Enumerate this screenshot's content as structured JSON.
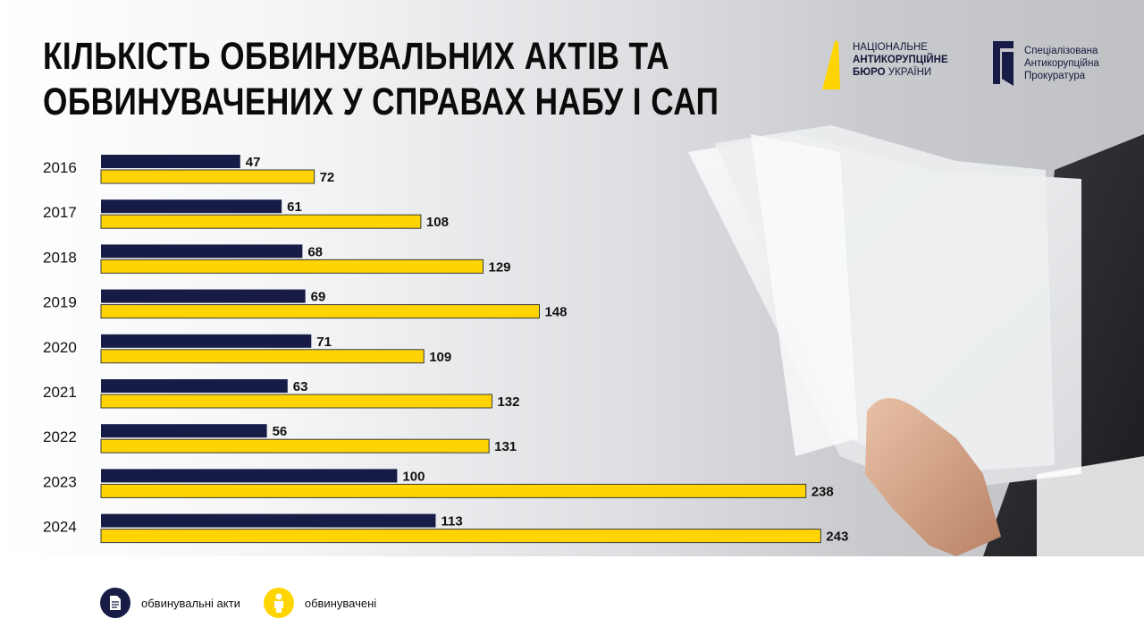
{
  "header": {
    "title_line1": "Кількість обвинувальних актів та",
    "title_line2": "обвинувачених  у справах НАБУ і САП"
  },
  "logos": {
    "nabu": {
      "line1": "НАЦІОНАЛЬНЕ",
      "line2": "АНТИКОРУПЦІЙНЕ",
      "line3_a": "БЮРО",
      "line3_b": "УКРАЇНИ"
    },
    "sap": {
      "line1": "Спеціалізована",
      "line2": "Антикорупційна",
      "line3": "Прокуратура"
    }
  },
  "legend": {
    "acts_label": "обвинувальні акти",
    "accused_label": "обвинувачені"
  },
  "colors": {
    "acts": "#161c45",
    "accused": "#ffd400",
    "accused_border": "#3a3a3a"
  },
  "icons": {
    "acts": "document-icon",
    "accused": "person-icon"
  },
  "chart_data": {
    "type": "bar",
    "orientation": "horizontal",
    "categories": [
      "2016",
      "2017",
      "2018",
      "2019",
      "2020",
      "2021",
      "2022",
      "2023",
      "2024"
    ],
    "series": [
      {
        "name": "обвинувальні акти",
        "values": [
          47,
          61,
          68,
          69,
          71,
          63,
          56,
          100,
          113
        ]
      },
      {
        "name": "обвинувачені",
        "values": [
          72,
          108,
          129,
          148,
          109,
          132,
          131,
          238,
          243
        ]
      }
    ],
    "xlim": [
      0,
      260
    ],
    "grid": false,
    "legend_position": "bottom-left",
    "data_labels": true
  }
}
